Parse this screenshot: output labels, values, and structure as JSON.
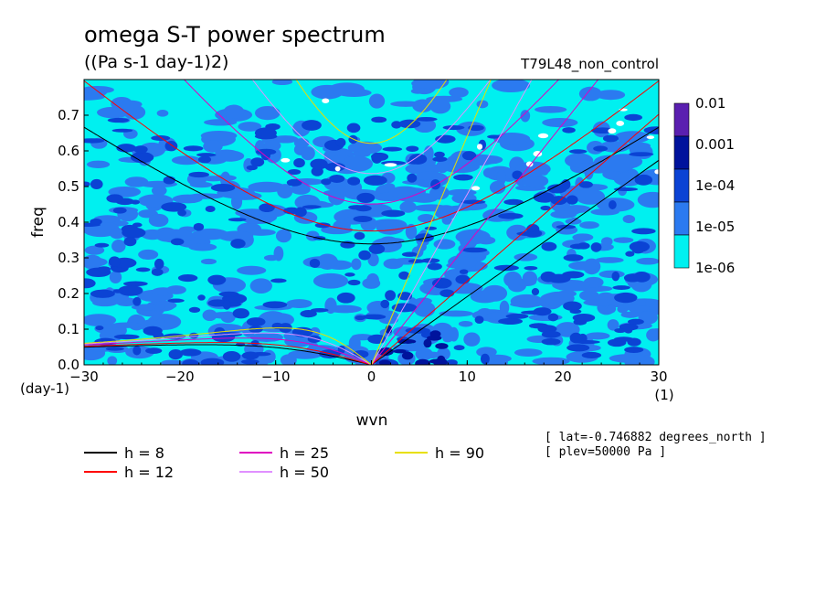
{
  "chart_data": {
    "type": "heatmap",
    "title": "omega S-T power spectrum",
    "subtitle": "((Pa s-1 day-1)2)",
    "experiment": "T79L48_non_control",
    "xlabel": "wvn",
    "xunit": "(1)",
    "ylabel": "freq",
    "yunit": "(day-1)",
    "xlim": [
      -30,
      30
    ],
    "ylim": [
      0,
      0.8
    ],
    "xticks": [
      "−30",
      "−20",
      "−10",
      "0",
      "10",
      "20",
      "30"
    ],
    "yticks": [
      "0.0",
      "0.1",
      "0.2",
      "0.3",
      "0.4",
      "0.5",
      "0.6",
      "0.7"
    ],
    "colorbar": {
      "scale": "log",
      "labels": [
        "0.01",
        "0.001",
        "1e-04",
        "1e-05",
        "1e-06"
      ],
      "colors": [
        "#5a1fb0",
        "#00139c",
        "#0b43d4",
        "#2b7af0",
        "#00f0f0"
      ]
    },
    "dispersion_curves": [
      {
        "h": 8,
        "label": "h =  8",
        "color": "#000000"
      },
      {
        "h": 12,
        "label": "h = 12",
        "color": "#ff0000"
      },
      {
        "h": 25,
        "label": "h = 25",
        "color": "#e000c0"
      },
      {
        "h": 50,
        "label": "h = 50",
        "color": "#e090ff"
      },
      {
        "h": 90,
        "label": "h = 90",
        "color": "#e8e000"
      }
    ],
    "annotations": [
      "[ lat=-0.746882 degrees_north ]",
      "[ plev=50000 Pa ]"
    ],
    "legend_position": "bottom"
  }
}
